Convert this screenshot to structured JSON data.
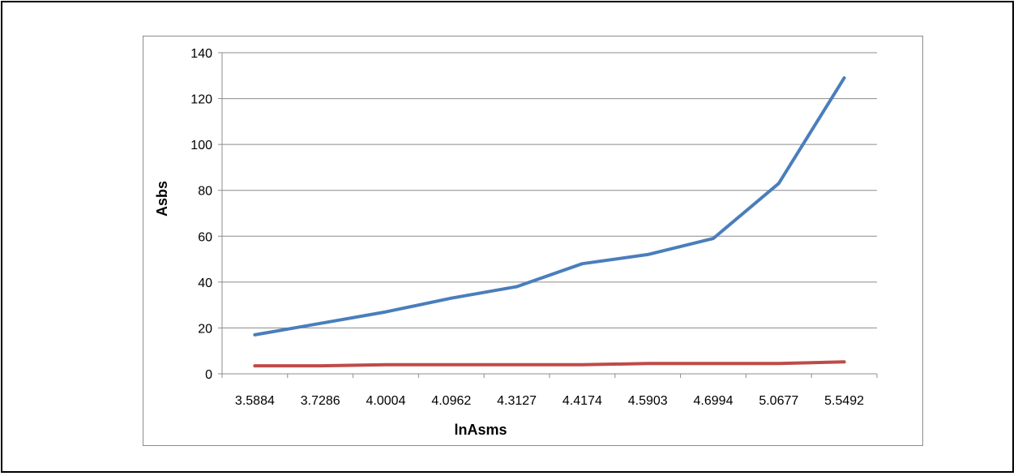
{
  "chart_data": {
    "type": "line",
    "categories": [
      "3.5884",
      "3.7286",
      "4.0004",
      "4.0962",
      "4.3127",
      "4.4174",
      "4.5903",
      "4.6994",
      "5.0677",
      "5.5492"
    ],
    "series": [
      {
        "values": [
          17,
          22,
          27,
          33,
          38,
          48,
          52,
          59,
          83,
          129
        ],
        "color": "#4a7ebb"
      },
      {
        "values": [
          3.5,
          3.5,
          4,
          4,
          4,
          4,
          4.5,
          4.5,
          4.5,
          5.2
        ],
        "color": "#be4b48"
      }
    ],
    "xlabel": "lnAsms",
    "ylabel": "Asbs",
    "ylim": [
      0,
      140
    ],
    "yticks": [
      "0",
      "20",
      "40",
      "60",
      "80",
      "100",
      "120",
      "140"
    ],
    "grid": true,
    "legend": "none"
  }
}
